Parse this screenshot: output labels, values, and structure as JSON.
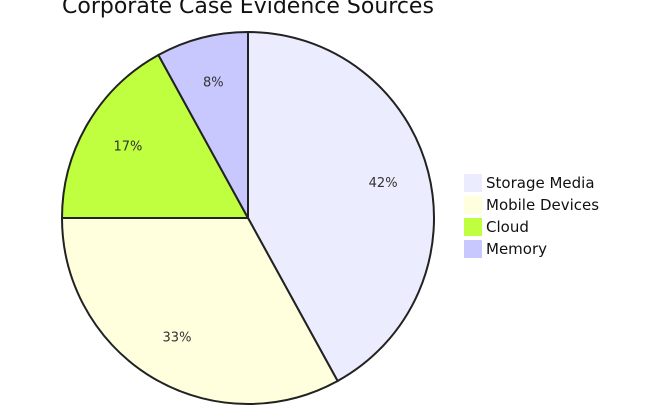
{
  "chart_data": {
    "type": "pie",
    "title": "Corporate Case Evidence Sources",
    "categories": [
      "Storage Media",
      "Mobile Devices",
      "Cloud",
      "Memory"
    ],
    "values": [
      42,
      33,
      17,
      8
    ],
    "labels": [
      "42%",
      "33%",
      "17%",
      "8%"
    ],
    "colors": [
      "#ececff",
      "#ffffde",
      "#bfff40",
      "#c8c8ff"
    ],
    "legend_position": "right",
    "start": "top",
    "direction": "clockwise"
  }
}
